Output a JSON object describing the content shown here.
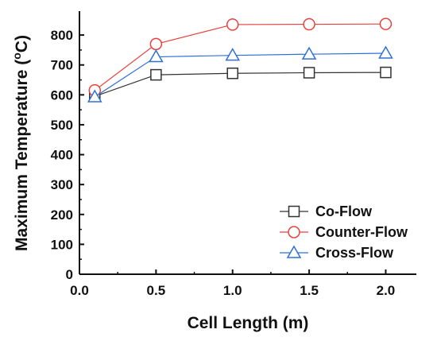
{
  "chart_data": {
    "type": "line",
    "xlabel": "Cell Length (m)",
    "ylabel_main": "Maximum Temperature (",
    "ylabel_sup": "o",
    "ylabel_tail": "C)",
    "xlim": [
      0.0,
      2.2
    ],
    "ylim": [
      0,
      880
    ],
    "x_ticks": [
      0.0,
      0.5,
      1.0,
      1.5,
      2.0
    ],
    "x_tick_labels": [
      "0.0",
      "0.5",
      "1.0",
      "1.5",
      "2.0"
    ],
    "y_ticks": [
      0,
      100,
      200,
      300,
      400,
      500,
      600,
      700,
      800
    ],
    "y_tick_labels": [
      "0",
      "100",
      "200",
      "300",
      "400",
      "500",
      "600",
      "700",
      "800"
    ],
    "grid": false,
    "legend_position": "bottom-right",
    "series": [
      {
        "name": "Co-Flow",
        "marker": "square",
        "color": "#333333",
        "x": [
          0.1,
          0.5,
          1.0,
          1.5,
          2.0
        ],
        "y": [
          595,
          667,
          672,
          674,
          675
        ]
      },
      {
        "name": "Counter-Flow",
        "marker": "circle",
        "color": "#e8413c",
        "x": [
          0.1,
          0.5,
          1.0,
          1.5,
          2.0
        ],
        "y": [
          615,
          770,
          835,
          836,
          837
        ]
      },
      {
        "name": "Cross-Flow",
        "marker": "triangle",
        "color": "#2f6fd6",
        "x": [
          0.1,
          0.5,
          1.0,
          1.5,
          2.0
        ],
        "y": [
          593,
          727,
          732,
          736,
          739
        ]
      }
    ]
  }
}
